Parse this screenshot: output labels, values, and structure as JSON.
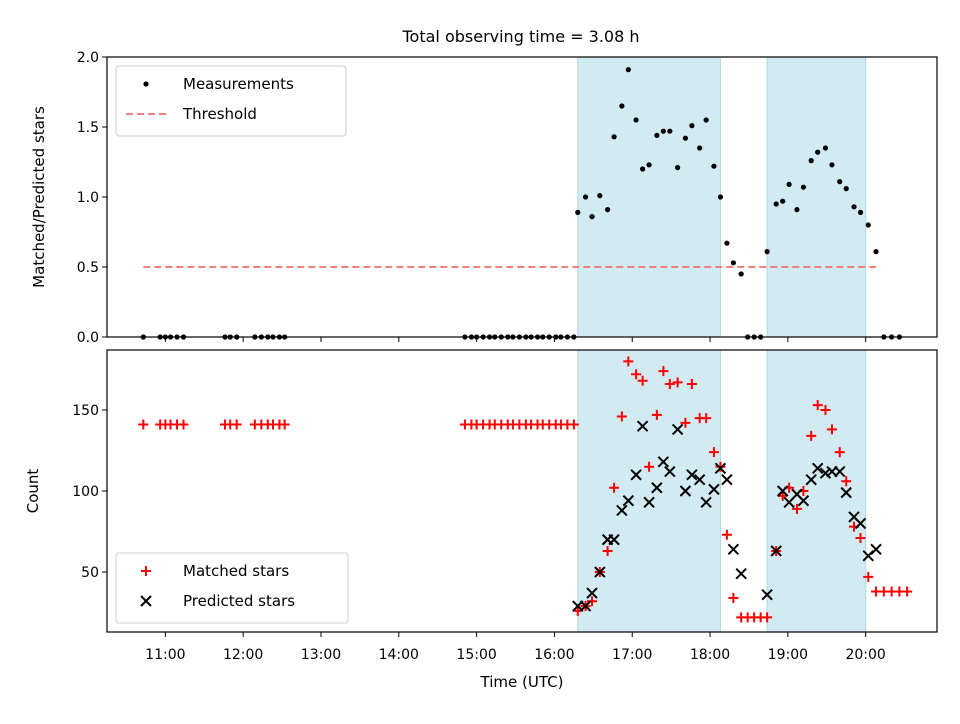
{
  "title": "Total observing time = 3.08 h",
  "chart_data": [
    {
      "type": "scatter",
      "ylabel": "Matched/Predicted stars",
      "ylim": [
        0,
        2.0
      ],
      "yticks": [
        "0.0",
        "0.5",
        "1.0",
        "1.5",
        "2.0"
      ],
      "legend": {
        "placement": "upper-left",
        "entries": [
          {
            "label": "Measurements",
            "marker": "dot",
            "color": "#000000"
          },
          {
            "label": "Threshold",
            "marker": "dashed-line",
            "color": "#f08080"
          }
        ]
      },
      "threshold": {
        "value": 0.5,
        "x_start": "10:43",
        "x_end": "20:08"
      },
      "series": [
        {
          "name": "Measurements",
          "points": [
            [
              "10:43",
              0
            ],
            [
              "10:56",
              0
            ],
            [
              "11:00",
              0
            ],
            [
              "11:04",
              0
            ],
            [
              "11:09",
              0
            ],
            [
              "11:14",
              0
            ],
            [
              "11:46",
              0
            ],
            [
              "11:50",
              0
            ],
            [
              "11:55",
              0
            ],
            [
              "12:09",
              0
            ],
            [
              "12:14",
              0
            ],
            [
              "12:19",
              0
            ],
            [
              "12:23",
              0
            ],
            [
              "12:28",
              0
            ],
            [
              "12:32",
              0
            ],
            [
              "14:51",
              0
            ],
            [
              "14:56",
              0
            ],
            [
              "15:00",
              0
            ],
            [
              "15:05",
              0
            ],
            [
              "15:10",
              0
            ],
            [
              "15:14",
              0
            ],
            [
              "15:19",
              0
            ],
            [
              "15:24",
              0
            ],
            [
              "15:28",
              0
            ],
            [
              "15:33",
              0
            ],
            [
              "15:38",
              0
            ],
            [
              "15:42",
              0
            ],
            [
              "15:47",
              0
            ],
            [
              "15:51",
              0
            ],
            [
              "15:56",
              0
            ],
            [
              "16:01",
              0
            ],
            [
              "16:05",
              0
            ],
            [
              "16:10",
              0
            ],
            [
              "16:15",
              0
            ],
            [
              "16:18",
              0.89
            ],
            [
              "16:24",
              1.0
            ],
            [
              "16:29",
              0.86
            ],
            [
              "16:35",
              1.01
            ],
            [
              "16:41",
              0.91
            ],
            [
              "16:46",
              1.43
            ],
            [
              "16:52",
              1.65
            ],
            [
              "16:57",
              1.91
            ],
            [
              "17:03",
              1.55
            ],
            [
              "17:08",
              1.2
            ],
            [
              "17:13",
              1.23
            ],
            [
              "17:19",
              1.44
            ],
            [
              "17:24",
              1.47
            ],
            [
              "17:29",
              1.47
            ],
            [
              "17:35",
              1.21
            ],
            [
              "17:41",
              1.42
            ],
            [
              "17:46",
              1.51
            ],
            [
              "17:52",
              1.35
            ],
            [
              "17:57",
              1.55
            ],
            [
              "18:03",
              1.22
            ],
            [
              "18:08",
              1.0
            ],
            [
              "18:13",
              0.67
            ],
            [
              "18:18",
              0.53
            ],
            [
              "18:24",
              0.45
            ],
            [
              "18:29",
              0
            ],
            [
              "18:34",
              0
            ],
            [
              "18:39",
              0
            ],
            [
              "18:44",
              0.61
            ],
            [
              "18:51",
              0.95
            ],
            [
              "18:56",
              0.97
            ],
            [
              "19:01",
              1.09
            ],
            [
              "19:07",
              0.91
            ],
            [
              "19:12",
              1.07
            ],
            [
              "19:18",
              1.26
            ],
            [
              "19:23",
              1.32
            ],
            [
              "19:29",
              1.35
            ],
            [
              "19:34",
              1.23
            ],
            [
              "19:40",
              1.11
            ],
            [
              "19:45",
              1.06
            ],
            [
              "19:51",
              0.93
            ],
            [
              "19:56",
              0.89
            ],
            [
              "20:02",
              0.8
            ],
            [
              "20:08",
              0.61
            ],
            [
              "20:14",
              0
            ],
            [
              "20:20",
              0
            ],
            [
              "20:26",
              0
            ]
          ]
        }
      ]
    },
    {
      "type": "scatter",
      "xlabel": "Time (UTC)",
      "ylabel": "Count",
      "ylim": [
        13,
        187
      ],
      "yticks": [
        "50",
        "100",
        "150"
      ],
      "legend": {
        "placement": "lower-left",
        "entries": [
          {
            "label": "Matched stars",
            "marker": "plus",
            "color": "#ff0000"
          },
          {
            "label": "Predicted stars",
            "marker": "x",
            "color": "#000000"
          }
        ]
      },
      "series": [
        {
          "name": "Matched stars",
          "points": [
            [
              "10:43",
              141
            ],
            [
              "10:56",
              141
            ],
            [
              "11:00",
              141
            ],
            [
              "11:04",
              141
            ],
            [
              "11:09",
              141
            ],
            [
              "11:14",
              141
            ],
            [
              "11:46",
              141
            ],
            [
              "11:50",
              141
            ],
            [
              "11:55",
              141
            ],
            [
              "12:09",
              141
            ],
            [
              "12:14",
              141
            ],
            [
              "12:19",
              141
            ],
            [
              "12:23",
              141
            ],
            [
              "12:28",
              141
            ],
            [
              "12:32",
              141
            ],
            [
              "14:51",
              141
            ],
            [
              "14:56",
              141
            ],
            [
              "15:00",
              141
            ],
            [
              "15:05",
              141
            ],
            [
              "15:10",
              141
            ],
            [
              "15:14",
              141
            ],
            [
              "15:19",
              141
            ],
            [
              "15:24",
              141
            ],
            [
              "15:28",
              141
            ],
            [
              "15:33",
              141
            ],
            [
              "15:38",
              141
            ],
            [
              "15:42",
              141
            ],
            [
              "15:47",
              141
            ],
            [
              "15:51",
              141
            ],
            [
              "15:56",
              141
            ],
            [
              "16:01",
              141
            ],
            [
              "16:05",
              141
            ],
            [
              "16:10",
              141
            ],
            [
              "16:15",
              141
            ],
            [
              "16:18",
              26
            ],
            [
              "16:24",
              29
            ],
            [
              "16:29",
              32
            ],
            [
              "16:35",
              50
            ],
            [
              "16:41",
              63
            ],
            [
              "16:46",
              102
            ],
            [
              "16:52",
              146
            ],
            [
              "16:57",
              180
            ],
            [
              "17:03",
              172
            ],
            [
              "17:08",
              168
            ],
            [
              "17:13",
              115
            ],
            [
              "17:19",
              147
            ],
            [
              "17:24",
              174
            ],
            [
              "17:29",
              166
            ],
            [
              "17:35",
              167
            ],
            [
              "17:41",
              142
            ],
            [
              "17:46",
              166
            ],
            [
              "17:52",
              145
            ],
            [
              "17:57",
              145
            ],
            [
              "18:03",
              124
            ],
            [
              "18:08",
              115
            ],
            [
              "18:13",
              73
            ],
            [
              "18:18",
              34
            ],
            [
              "18:24",
              22
            ],
            [
              "18:29",
              22
            ],
            [
              "18:34",
              22
            ],
            [
              "18:39",
              22
            ],
            [
              "18:44",
              22
            ],
            [
              "18:51",
              63
            ],
            [
              "18:56",
              97
            ],
            [
              "19:01",
              102
            ],
            [
              "19:07",
              89
            ],
            [
              "19:12",
              100
            ],
            [
              "19:18",
              134
            ],
            [
              "19:23",
              153
            ],
            [
              "19:29",
              150
            ],
            [
              "19:34",
              138
            ],
            [
              "19:40",
              124
            ],
            [
              "19:45",
              106
            ],
            [
              "19:51",
              78
            ],
            [
              "19:56",
              71
            ],
            [
              "20:02",
              47
            ],
            [
              "20:08",
              38
            ],
            [
              "20:14",
              38
            ],
            [
              "20:20",
              38
            ],
            [
              "20:26",
              38
            ],
            [
              "20:32",
              38
            ]
          ]
        },
        {
          "name": "Predicted stars",
          "points": [
            [
              "16:18",
              29
            ],
            [
              "16:24",
              29
            ],
            [
              "16:29",
              37
            ],
            [
              "16:35",
              50
            ],
            [
              "16:41",
              70
            ],
            [
              "16:46",
              70
            ],
            [
              "16:52",
              88
            ],
            [
              "16:57",
              94
            ],
            [
              "17:03",
              110
            ],
            [
              "17:08",
              140
            ],
            [
              "17:13",
              93
            ],
            [
              "17:19",
              102
            ],
            [
              "17:24",
              118
            ],
            [
              "17:29",
              112
            ],
            [
              "17:35",
              138
            ],
            [
              "17:41",
              100
            ],
            [
              "17:46",
              110
            ],
            [
              "17:52",
              107
            ],
            [
              "17:57",
              93
            ],
            [
              "18:03",
              101
            ],
            [
              "18:08",
              114
            ],
            [
              "18:13",
              107
            ],
            [
              "18:18",
              64
            ],
            [
              "18:24",
              49
            ],
            [
              "18:44",
              36
            ],
            [
              "18:51",
              63
            ],
            [
              "18:56",
              100
            ],
            [
              "19:01",
              93
            ],
            [
              "19:07",
              98
            ],
            [
              "19:12",
              94
            ],
            [
              "19:18",
              107
            ],
            [
              "19:23",
              114
            ],
            [
              "19:29",
              111
            ],
            [
              "19:34",
              112
            ],
            [
              "19:40",
              112
            ],
            [
              "19:45",
              99
            ],
            [
              "19:51",
              84
            ],
            [
              "19:56",
              80
            ],
            [
              "20:02",
              60
            ],
            [
              "20:08",
              64
            ]
          ]
        }
      ]
    }
  ],
  "x_axis": {
    "xlim": [
      "10:15",
      "20:55"
    ],
    "ticks": [
      "11:00",
      "12:00",
      "13:00",
      "14:00",
      "15:00",
      "16:00",
      "17:00",
      "18:00",
      "19:00",
      "20:00"
    ]
  },
  "observing_windows": [
    {
      "start": "16:18",
      "end": "18:08"
    },
    {
      "start": "18:44",
      "end": "20:00"
    }
  ],
  "colors": {
    "window_fill": "#add8e6",
    "threshold": "#f08080",
    "matched": "#ff0000",
    "predicted": "#000000",
    "measurements": "#000000"
  }
}
